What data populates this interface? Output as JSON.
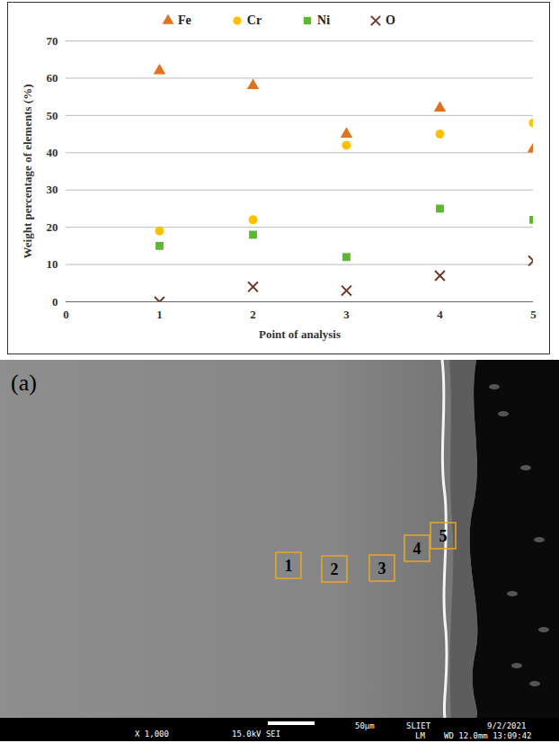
{
  "chart_data": {
    "type": "scatter",
    "x_label": "Point of analysis",
    "y_label": "Weight percentage of elements (%)",
    "x": [
      1,
      2,
      3,
      4,
      5
    ],
    "series": [
      {
        "name": "Fe",
        "color": "#e2711d",
        "marker": "triangle",
        "values": [
          62,
          58,
          45,
          52,
          41
        ]
      },
      {
        "name": "Cr",
        "color": "#ffc000",
        "marker": "circle",
        "values": [
          19,
          22,
          42,
          45,
          48
        ]
      },
      {
        "name": "Ni",
        "color": "#5cb82e",
        "marker": "square",
        "values": [
          15,
          18,
          12,
          25,
          22
        ]
      },
      {
        "name": "O",
        "color": "#6b3a2a",
        "marker": "x",
        "values": [
          0,
          4,
          3,
          7,
          11
        ]
      }
    ],
    "xlim": [
      0,
      5
    ],
    "xticks": [
      0,
      1,
      2,
      3,
      4,
      5
    ],
    "ylim": [
      0,
      70
    ],
    "yticks": [
      0,
      10,
      20,
      30,
      40,
      50,
      60,
      70
    ],
    "grid": true,
    "legend": "top"
  },
  "micrograph": {
    "panel_label": "(a)",
    "boxes": [
      "1",
      "2",
      "3",
      "4",
      "5"
    ],
    "info_bar": [
      "X 1,000",
      "15.0kV SEI",
      "50µm",
      "SLIET",
      "9/2/2021",
      "LM",
      "WD 12.0mm 13:09:42"
    ]
  }
}
